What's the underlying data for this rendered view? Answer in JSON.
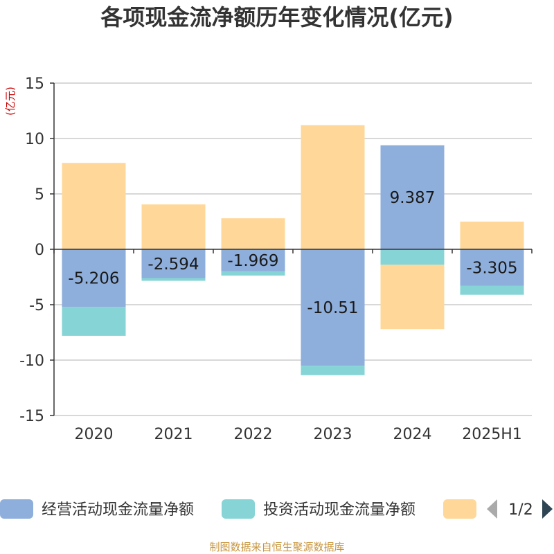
{
  "chart_data": {
    "type": "bar",
    "stacked": true,
    "title": "各项现金流净额历年变化情况(亿元)",
    "ylabel": "(亿元)",
    "ylim": [
      -15,
      15
    ],
    "yticks": [
      15,
      10,
      5,
      0,
      -5,
      -10,
      -15
    ],
    "ytick_labels": [
      "15",
      "10",
      "5",
      "0",
      "-5",
      "-10",
      "-15"
    ],
    "categories": [
      "2020",
      "2021",
      "2022",
      "2023",
      "2024",
      "2025H1"
    ],
    "series": [
      {
        "name": "经营活动现金流量净额",
        "color": "#8eaedb",
        "values": [
          -5.206,
          -2.594,
          -1.969,
          -10.51,
          9.387,
          -3.305
        ],
        "labels": [
          "-5.206",
          "-2.594",
          "-1.969",
          "-10.51",
          "9.387",
          "-3.305"
        ]
      },
      {
        "name": "投资活动现金流量净额",
        "color": "#86d4d6",
        "values": [
          -2.6,
          -0.25,
          -0.4,
          -0.85,
          -1.4,
          -0.8
        ]
      },
      {
        "name": "",
        "color": "#ffd899",
        "values": [
          7.8,
          4.05,
          2.8,
          11.2,
          -5.8,
          2.5
        ]
      }
    ],
    "grid": true,
    "legend_position": "bottom",
    "legend_page": "1/2"
  },
  "source": "制图数据来自恒生聚源数据库"
}
